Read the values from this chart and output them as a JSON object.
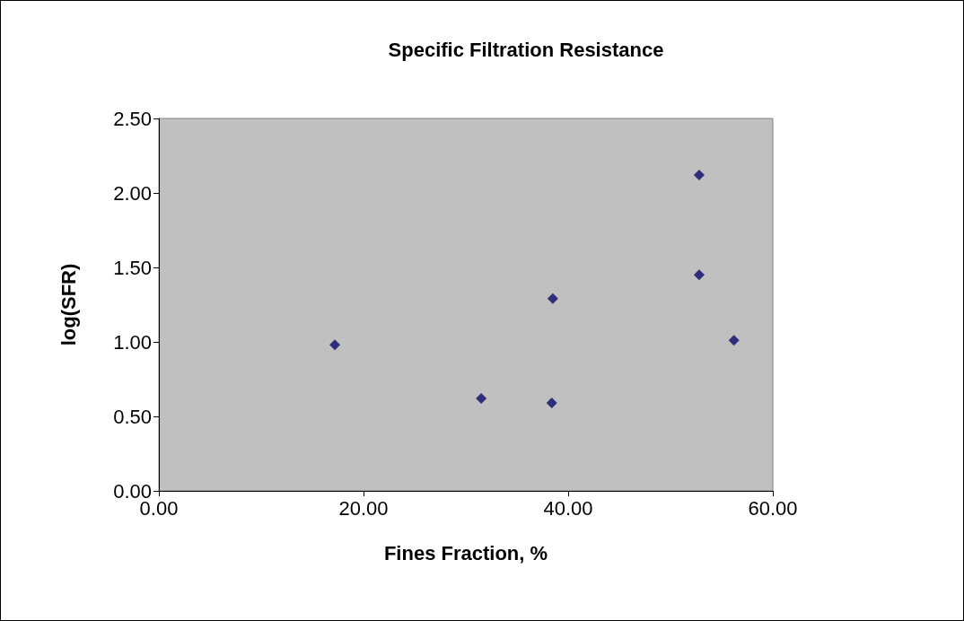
{
  "chart_data": {
    "type": "scatter",
    "title": "Specific Filtration Resistance",
    "xlabel": "Fines Fraction, %",
    "ylabel": "log(SFR)",
    "series": [
      {
        "color": "#2e2e7a",
        "x": [
          17.2,
          31.5,
          38.5,
          38.4,
          52.8,
          52.8,
          56.2
        ],
        "values": [
          0.98,
          0.62,
          1.29,
          0.59,
          2.12,
          1.45,
          1.01
        ]
      }
    ],
    "xlim": [
      0,
      60
    ],
    "xticks": [
      {
        "value": 0,
        "label": "0.00"
      },
      {
        "value": 20,
        "label": "20.00"
      },
      {
        "value": 40,
        "label": "40.00"
      },
      {
        "value": 60,
        "label": "60.00"
      }
    ],
    "ylim": [
      0,
      2.5
    ],
    "yticks": [
      {
        "value": 0,
        "label": "0.00"
      },
      {
        "value": 0.5,
        "label": "0.50"
      },
      {
        "value": 1,
        "label": "1.00"
      },
      {
        "value": 1.5,
        "label": "1.50"
      },
      {
        "value": 2,
        "label": "2.00"
      },
      {
        "value": 2.5,
        "label": "2.50"
      }
    ],
    "grid": false,
    "marker": "diamond"
  }
}
